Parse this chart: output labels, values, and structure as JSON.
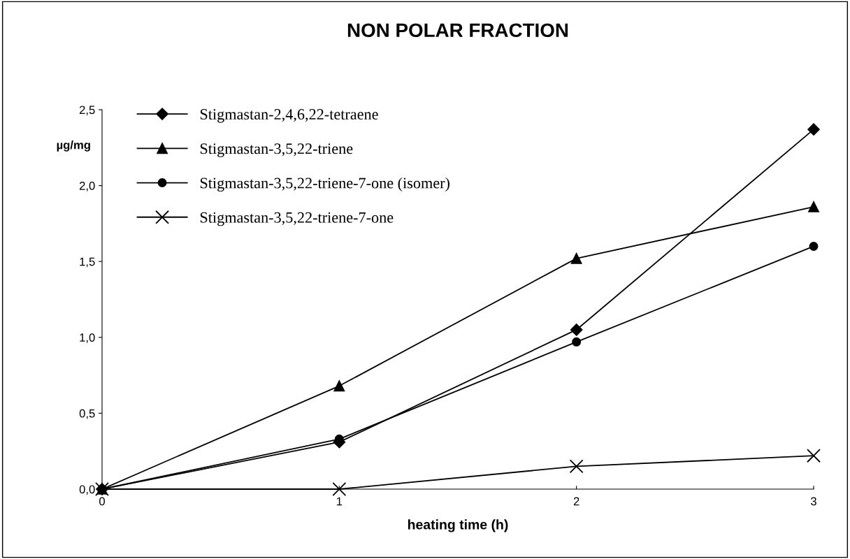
{
  "chart_data": {
    "type": "line",
    "title": "NON POLAR FRACTION",
    "xlabel": "heating time (h)",
    "ylabel": "µg/mg",
    "x": [
      0,
      1,
      2,
      3
    ],
    "series": [
      {
        "name": "Stigmastan-2,4,6,22-tetraene",
        "color": "#000000",
        "marker": "diamond",
        "values": [
          0,
          0.31,
          1.05,
          2.37
        ]
      },
      {
        "name": "Stigmastan-3,5,22-triene",
        "color": "#000000",
        "marker": "triangle",
        "values": [
          0,
          0.68,
          1.52,
          1.86
        ]
      },
      {
        "name": "Stigmastan-3,5,22-triene-7-one (isomer)",
        "color": "#000000",
        "marker": "circle",
        "values": [
          0,
          0.33,
          0.97,
          1.6
        ]
      },
      {
        "name": "Stigmastan-3,5,22-triene-7-one",
        "color": "#000000",
        "marker": "cross",
        "values": [
          0,
          0,
          0.15,
          0.22
        ]
      }
    ],
    "xlim": [
      0,
      3
    ],
    "xticks": [
      0,
      1,
      2,
      3
    ],
    "ylim": [
      0,
      2.5
    ],
    "yticks": [
      {
        "value": 0,
        "label": "0,0"
      },
      {
        "value": 0.5,
        "label": "0,5"
      },
      {
        "value": 1.0,
        "label": "1,0"
      },
      {
        "value": 1.5,
        "label": "1,5"
      },
      {
        "value": 2.0,
        "label": "2,0"
      },
      {
        "value": 2.5,
        "label": "2,5"
      }
    ],
    "grid": false,
    "legend": "top left",
    "line_style": "solid"
  }
}
